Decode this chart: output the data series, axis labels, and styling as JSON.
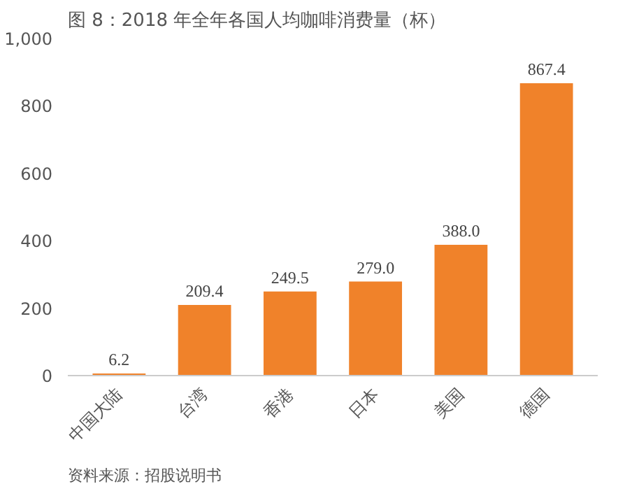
{
  "chart_data": {
    "type": "bar",
    "title": "图 8：2018 年全年各国人均咖啡消费量（杯）",
    "categories": [
      "中国大陆",
      "台湾",
      "香港",
      "日本",
      "美国",
      "德国"
    ],
    "values": [
      6.2,
      209.4,
      249.5,
      279,
      388,
      867.4
    ],
    "value_labels": [
      "6.2",
      "209.4",
      "249.5",
      "279.0",
      "388.0",
      "867.4"
    ],
    "color": "#f0822a",
    "ylim": [
      0,
      1000
    ],
    "yticks": [
      0,
      200,
      400,
      600,
      800,
      {
        "value": 1000,
        "label": "1,000"
      }
    ],
    "grid": false,
    "annotations": [
      "资料来源：招股说明书"
    ]
  }
}
